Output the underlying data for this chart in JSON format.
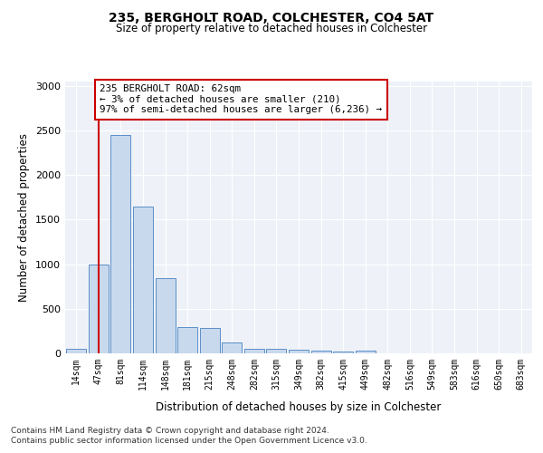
{
  "title1": "235, BERGHOLT ROAD, COLCHESTER, CO4 5AT",
  "title2": "Size of property relative to detached houses in Colchester",
  "xlabel": "Distribution of detached houses by size in Colchester",
  "ylabel": "Number of detached properties",
  "categories": [
    "14sqm",
    "47sqm",
    "81sqm",
    "114sqm",
    "148sqm",
    "181sqm",
    "215sqm",
    "248sqm",
    "282sqm",
    "315sqm",
    "349sqm",
    "382sqm",
    "415sqm",
    "449sqm",
    "482sqm",
    "516sqm",
    "549sqm",
    "583sqm",
    "616sqm",
    "650sqm",
    "683sqm"
  ],
  "values": [
    55,
    1000,
    2450,
    1650,
    840,
    290,
    285,
    120,
    55,
    50,
    45,
    30,
    25,
    35,
    0,
    0,
    0,
    0,
    0,
    0,
    0
  ],
  "bar_color": "#c9d9ed",
  "bar_edge_color": "#5b8fc9",
  "vline_x": 1.0,
  "vline_color": "#cc0000",
  "annotation_text": "235 BERGHOLT ROAD: 62sqm\n← 3% of detached houses are smaller (210)\n97% of semi-detached houses are larger (6,236) →",
  "annotation_box_color": "#ffffff",
  "annotation_box_edge_color": "#cc0000",
  "ylim": [
    0,
    3050
  ],
  "yticks": [
    0,
    500,
    1000,
    1500,
    2000,
    2500,
    3000
  ],
  "footer1": "Contains HM Land Registry data © Crown copyright and database right 2024.",
  "footer2": "Contains public sector information licensed under the Open Government Licence v3.0.",
  "bg_color": "#eef2f8"
}
